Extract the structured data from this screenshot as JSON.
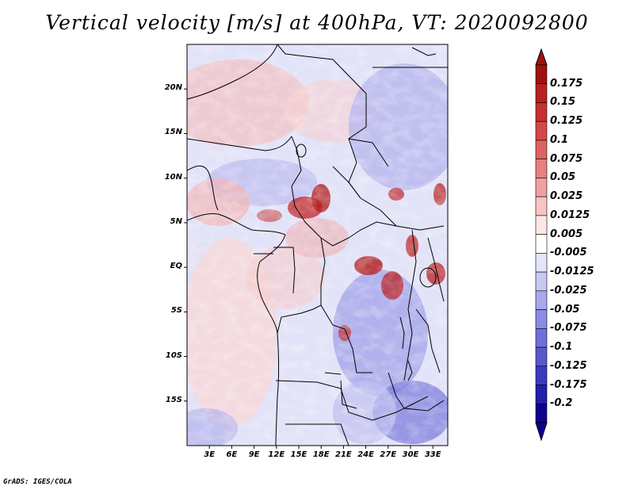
{
  "title": "Vertical velocity [m/s] at 400hPa, VT: 2020092800",
  "map": {
    "lat_labels": [
      "20N",
      "15N",
      "10N",
      "5N",
      "EQ",
      "5S",
      "10S",
      "15S"
    ],
    "lat_values": [
      20,
      15,
      10,
      5,
      0,
      -5,
      -10,
      -15
    ],
    "lon_labels": [
      "3E",
      "6E",
      "9E",
      "12E",
      "15E",
      "18E",
      "21E",
      "24E",
      "27E",
      "30E",
      "33E"
    ],
    "lon_values": [
      3,
      6,
      9,
      12,
      15,
      18,
      21,
      24,
      27,
      30,
      33
    ],
    "lat_range": [
      -20,
      25
    ],
    "lon_range": [
      0,
      35
    ]
  },
  "colorbar": {
    "labels": [
      "0.175",
      "0.15",
      "0.125",
      "0.1",
      "0.075",
      "0.05",
      "0.025",
      "0.0125",
      "0.005",
      "-0.005",
      "-0.0125",
      "-0.025",
      "-0.05",
      "-0.075",
      "-0.1",
      "-0.125",
      "-0.175",
      "-0.2"
    ],
    "colors": [
      "#a01010",
      "#b82020",
      "#c83030",
      "#d44848",
      "#de6262",
      "#e88080",
      "#f0a0a0",
      "#f8c4c4",
      "#fde6e6",
      "#ffffff",
      "#e4e4fa",
      "#c8c8f4",
      "#a8a8ee",
      "#8c8ce4",
      "#7070da",
      "#5858d0",
      "#3a3ac0",
      "#2020a8",
      "#100090"
    ]
  },
  "credit": "GrADS: IGES/COLA",
  "colors": {
    "positive": "#d33a3a",
    "negative": "#5a5ad8",
    "border": "#000000"
  }
}
